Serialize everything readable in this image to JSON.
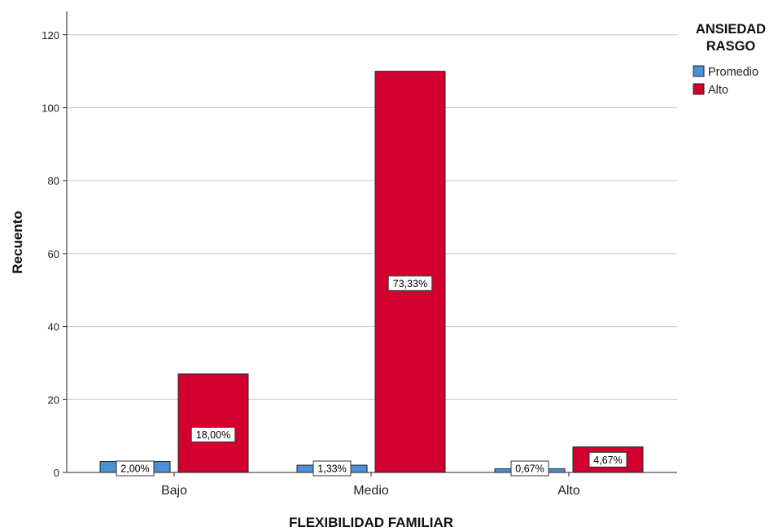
{
  "chart_data": {
    "type": "bar",
    "xlabel": "FLEXIBILIDAD FAMILIAR",
    "ylabel": "Recuento",
    "categories": [
      "Bajo",
      "Medio",
      "Alto"
    ],
    "ylim": [
      0,
      126
    ],
    "yticks": [
      0,
      20,
      40,
      60,
      80,
      100,
      120
    ],
    "grid": true,
    "legend": {
      "title_lines": [
        "ANSIEDAD",
        "RASGO"
      ],
      "placement": "top-right"
    },
    "series": [
      {
        "name": "Promedio",
        "color": "#4a90d9",
        "values": [
          3,
          2,
          1
        ],
        "labels": [
          "2,00%",
          "1,33%",
          "0,67%"
        ]
      },
      {
        "name": "Alto",
        "color": "#d1002f",
        "values": [
          27,
          110,
          7
        ],
        "labels": [
          "18,00%",
          "73,33%",
          "4,67%"
        ]
      }
    ]
  }
}
